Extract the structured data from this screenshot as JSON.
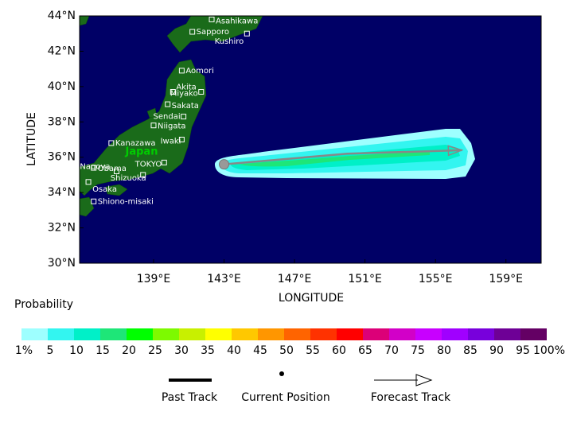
{
  "chart_data": {
    "type": "map",
    "xlabel": "LONGITUDE",
    "ylabel": "LATITUDE",
    "xlim": [
      134.8,
      161.0
    ],
    "ylim": [
      30,
      44
    ],
    "xticks": [
      {
        "value": 139,
        "label": "139°E"
      },
      {
        "value": 143,
        "label": "143°E"
      },
      {
        "value": 147,
        "label": "147°E"
      },
      {
        "value": 151,
        "label": "151°E"
      },
      {
        "value": 155,
        "label": "155°E"
      },
      {
        "value": 159,
        "label": "159°E"
      }
    ],
    "yticks": [
      {
        "value": 30,
        "label": "30°N"
      },
      {
        "value": 32,
        "label": "32°N"
      },
      {
        "value": 34,
        "label": "34°N"
      },
      {
        "value": 36,
        "label": "36°N"
      },
      {
        "value": 38,
        "label": "38°N"
      },
      {
        "value": 40,
        "label": "40°N"
      },
      {
        "value": 42,
        "label": "42°N"
      },
      {
        "value": 44,
        "label": "44°N"
      }
    ],
    "country_label": "Japan",
    "cities": [
      {
        "name": "Asahikawa",
        "lon": 142.3,
        "lat": 43.8
      },
      {
        "name": "Sapporo",
        "lon": 141.2,
        "lat": 43.1
      },
      {
        "name": "Kushiro",
        "lon": 144.3,
        "lat": 43.0
      },
      {
        "name": "Aomori",
        "lon": 140.6,
        "lat": 40.9
      },
      {
        "name": "Akita",
        "lon": 140.1,
        "lat": 39.7
      },
      {
        "name": "Miyako",
        "lon": 141.7,
        "lat": 39.7
      },
      {
        "name": "Sakata",
        "lon": 139.8,
        "lat": 39.0
      },
      {
        "name": "Sendai",
        "lon": 140.7,
        "lat": 38.3
      },
      {
        "name": "Niigata",
        "lon": 139.0,
        "lat": 37.8
      },
      {
        "name": "Iwaki",
        "lon": 140.6,
        "lat": 37.0
      },
      {
        "name": "Kanazawa",
        "lon": 136.6,
        "lat": 36.8
      },
      {
        "name": "Nagoya",
        "lon": 136.9,
        "lat": 35.2
      },
      {
        "name": "TOKYO",
        "lon": 139.6,
        "lat": 35.7
      },
      {
        "name": "Obama",
        "lon": 135.6,
        "lat": 35.4
      },
      {
        "name": "Shizuoka",
        "lon": 138.4,
        "lat": 35.0
      },
      {
        "name": "Osaka",
        "lon": 135.3,
        "lat": 34.6
      },
      {
        "name": "Shiono-misaki",
        "lon": 135.6,
        "lat": 33.5
      }
    ],
    "current_position": {
      "lon": 143.0,
      "lat": 35.6
    },
    "forecast_track": {
      "lon": [
        143.0,
        150.0,
        156.5
      ],
      "lat": [
        35.6,
        36.2,
        36.4
      ]
    },
    "colorbar": {
      "title": "Probability",
      "labels": [
        "1%",
        "5",
        "10",
        "15",
        "20",
        "25",
        "30",
        "35",
        "40",
        "45",
        "50",
        "55",
        "60",
        "65",
        "70",
        "75",
        "80",
        "85",
        "90",
        "95",
        "100%"
      ],
      "colors": [
        "#9effff",
        "#33f5f0",
        "#00f0c8",
        "#1ee678",
        "#00ff00",
        "#7dfa00",
        "#c8f000",
        "#ffff00",
        "#ffc800",
        "#ff9600",
        "#ff6400",
        "#ff3200",
        "#ff0000",
        "#dc0078",
        "#d200c8",
        "#c800ff",
        "#a000ff",
        "#7800dc",
        "#6e0096",
        "#640064"
      ]
    },
    "legend": {
      "past": "Past Track",
      "current": "Current Position",
      "forecast": "Forecast Track"
    }
  }
}
